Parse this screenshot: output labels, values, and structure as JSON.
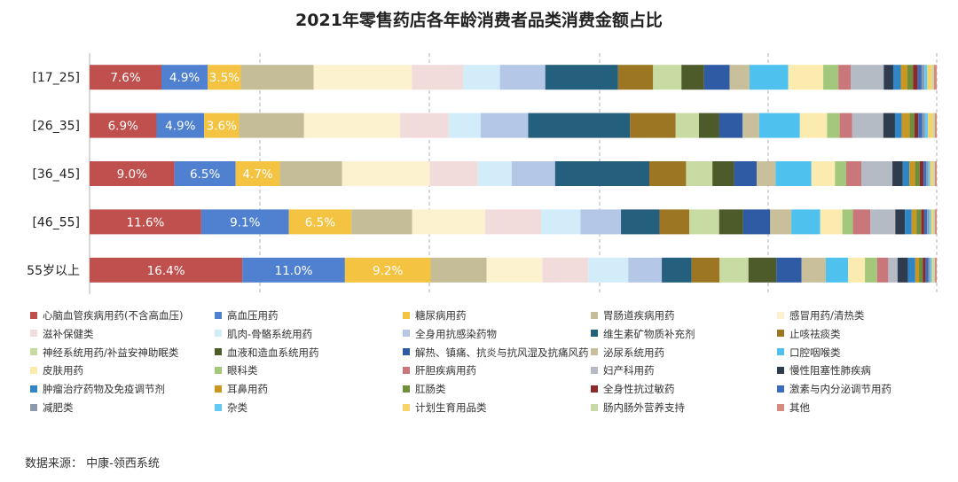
{
  "title": "2021年零售药店各年龄消费者品类消费金额占比",
  "source": "数据来源： 中康-领西系统",
  "chart_data": {
    "type": "bar",
    "stacked": true,
    "orientation": "horizontal",
    "normalized_percent": true,
    "grid": true,
    "legend_position": "bottom",
    "categories": [
      "[17_25]",
      "[26_35]",
      "[36_45]",
      "[46_55]",
      "55岁以上"
    ],
    "series": [
      {
        "name": "心脑血管疾病用药(不含高血压)",
        "color": "#c0504d",
        "values": [
          7.6,
          6.9,
          9.0,
          11.6,
          16.4
        ]
      },
      {
        "name": "高血压用药",
        "color": "#4f81d0",
        "values": [
          4.9,
          4.9,
          6.5,
          9.1,
          11.0
        ]
      },
      {
        "name": "糖尿病用药",
        "color": "#f5c342",
        "values": [
          3.5,
          3.6,
          4.7,
          6.5,
          9.2
        ]
      },
      {
        "name": "胃肠道疾病用药",
        "color": "#c4bd97",
        "values": [
          7.7,
          6.7,
          6.6,
          6.3,
          6.0
        ]
      },
      {
        "name": "感冒用药/清热类",
        "color": "#fdf2cf",
        "values": [
          10.4,
          9.9,
          9.3,
          7.6,
          6.0
        ]
      },
      {
        "name": "滋补保健类",
        "color": "#f2dcdb",
        "values": [
          5.4,
          5.0,
          5.1,
          5.8,
          4.9
        ]
      },
      {
        "name": "肌肉-骨骼系统用药",
        "color": "#d3ecfa",
        "values": [
          3.9,
          3.3,
          3.6,
          4.1,
          4.3
        ]
      },
      {
        "name": "全身用抗感染药物",
        "color": "#b4c7e7",
        "values": [
          4.8,
          4.9,
          4.6,
          4.2,
          3.6
        ]
      },
      {
        "name": "维生素矿物质补充剂",
        "color": "#245f7e",
        "values": [
          7.7,
          10.5,
          10.0,
          4.0,
          3.2
        ]
      },
      {
        "name": "止咳祛痰类",
        "color": "#9c7622",
        "values": [
          3.7,
          4.7,
          3.9,
          3.1,
          3.0
        ]
      },
      {
        "name": "神经系统用药/补益安神助眠类",
        "color": "#c8dba3",
        "values": [
          3.0,
          2.4,
          2.8,
          3.1,
          3.1
        ]
      },
      {
        "name": "血液和造血系统用药",
        "color": "#4d5a2a",
        "values": [
          2.4,
          2.1,
          2.3,
          2.5,
          3.0
        ]
      },
      {
        "name": "解热、镇痛、抗炎与抗风湿及抗痛风药",
        "color": "#2e5ba4",
        "values": [
          2.7,
          2.4,
          2.4,
          2.8,
          2.7
        ]
      },
      {
        "name": "泌尿系统用药",
        "color": "#c9bf9a",
        "values": [
          2.1,
          1.7,
          2.0,
          2.2,
          2.6
        ]
      },
      {
        "name": "口腔咽喉类",
        "color": "#4fc1ef",
        "values": [
          4.1,
          4.2,
          3.8,
          3.0,
          2.4
        ]
      },
      {
        "name": "皮肤用药",
        "color": "#fcebaf",
        "values": [
          3.7,
          2.8,
          2.5,
          2.3,
          1.8
        ]
      },
      {
        "name": "眼科类",
        "color": "#a3c77b",
        "values": [
          1.6,
          1.3,
          1.2,
          1.1,
          1.3
        ]
      },
      {
        "name": "肝胆疾病用药",
        "color": "#c9777a",
        "values": [
          1.3,
          1.3,
          1.6,
          1.8,
          1.2
        ]
      },
      {
        "name": "妇产科用药",
        "color": "#b5bbc4",
        "values": [
          3.5,
          3.2,
          3.3,
          2.6,
          1.0
        ]
      },
      {
        "name": "慢性阻塞性肺疾病",
        "color": "#2f3c4e",
        "values": [
          1.0,
          1.2,
          1.1,
          1.0,
          1.1
        ]
      },
      {
        "name": "肿瘤治疗药物及免疫调节剂",
        "color": "#2f85c6",
        "values": [
          0.8,
          0.7,
          0.7,
          0.7,
          0.8
        ]
      },
      {
        "name": "耳鼻用药",
        "color": "#c99622",
        "values": [
          0.7,
          0.8,
          0.6,
          0.5,
          0.4
        ]
      },
      {
        "name": "肛肠类",
        "color": "#6e8e3c",
        "values": [
          0.6,
          0.5,
          0.5,
          0.5,
          0.4
        ]
      },
      {
        "name": "全身性抗过敏药",
        "color": "#8b2a2a",
        "values": [
          0.5,
          0.4,
          0.4,
          0.3,
          0.3
        ]
      },
      {
        "name": "激素与内分泌调节用药",
        "color": "#3a6dbb",
        "values": [
          0.4,
          0.4,
          0.3,
          0.3,
          0.3
        ]
      },
      {
        "name": "减肥类",
        "color": "#8e99ac",
        "values": [
          0.3,
          0.3,
          0.2,
          0.2,
          0.2
        ]
      },
      {
        "name": "杂类",
        "color": "#62c9f3",
        "values": [
          0.3,
          0.3,
          0.2,
          0.2,
          0.2
        ]
      },
      {
        "name": "计划生育用品类",
        "color": "#f7d46a",
        "values": [
          0.5,
          0.5,
          0.3,
          0.2,
          0.1
        ]
      },
      {
        "name": "肠内肠外营养支持",
        "color": "#c6d9a7",
        "values": [
          0.2,
          0.2,
          0.2,
          0.2,
          0.2
        ]
      },
      {
        "name": "其他",
        "color": "#d58b7e",
        "values": [
          0.3,
          0.2,
          0.2,
          0.2,
          0.2
        ]
      }
    ]
  }
}
